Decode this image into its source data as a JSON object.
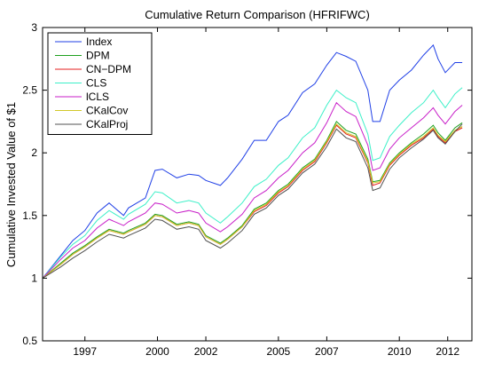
{
  "chart_data": {
    "type": "line",
    "title": "Cumulative Return Comparison (HFRIFWC)",
    "xlabel": "",
    "ylabel": "Cumulative Invested Value of $1",
    "xlim": [
      1995.25,
      2013.0
    ],
    "ylim": [
      0.5,
      3.0
    ],
    "xticks": [
      1997,
      2000,
      2002,
      2005,
      2007,
      2010,
      2012
    ],
    "yticks": [
      0.5,
      1,
      1.5,
      2,
      2.5,
      3
    ],
    "ytick_labels": [
      "0.5",
      "1",
      "1.5",
      "2",
      "2.5",
      "3"
    ],
    "grid": false,
    "legend_position": "top-left",
    "x": [
      1995.25,
      1996.0,
      1996.5,
      1997.0,
      1997.5,
      1998.0,
      1998.6,
      1998.8,
      1999.5,
      1999.9,
      2000.2,
      2000.8,
      2001.3,
      2001.7,
      2002.0,
      2002.6,
      2002.9,
      2003.5,
      2004.0,
      2004.5,
      2005.0,
      2005.4,
      2006.0,
      2006.5,
      2007.0,
      2007.4,
      2007.8,
      2008.2,
      2008.7,
      2008.9,
      2009.2,
      2009.6,
      2010.0,
      2010.5,
      2011.0,
      2011.4,
      2011.6,
      2011.9,
      2012.3,
      2012.6
    ],
    "series": [
      {
        "name": "Index",
        "color": "#1f3fe6",
        "values": [
          1.0,
          1.18,
          1.3,
          1.38,
          1.52,
          1.6,
          1.5,
          1.56,
          1.64,
          1.86,
          1.87,
          1.8,
          1.83,
          1.82,
          1.78,
          1.74,
          1.8,
          1.95,
          2.1,
          2.1,
          2.25,
          2.3,
          2.48,
          2.55,
          2.7,
          2.8,
          2.77,
          2.73,
          2.5,
          2.25,
          2.25,
          2.5,
          2.58,
          2.66,
          2.78,
          2.86,
          2.75,
          2.64,
          2.72,
          2.72
        ]
      },
      {
        "name": "DPM",
        "color": "#1ea01e",
        "values": [
          1.0,
          1.12,
          1.2,
          1.26,
          1.33,
          1.39,
          1.36,
          1.38,
          1.44,
          1.51,
          1.5,
          1.43,
          1.45,
          1.43,
          1.34,
          1.28,
          1.32,
          1.42,
          1.55,
          1.6,
          1.7,
          1.75,
          1.88,
          1.95,
          2.1,
          2.25,
          2.18,
          2.15,
          1.95,
          1.77,
          1.78,
          1.92,
          2.0,
          2.08,
          2.15,
          2.22,
          2.16,
          2.1,
          2.2,
          2.24
        ]
      },
      {
        "name": "CN−DPM",
        "color": "#e61e1e",
        "values": [
          1.0,
          1.11,
          1.19,
          1.25,
          1.32,
          1.38,
          1.35,
          1.37,
          1.43,
          1.5,
          1.49,
          1.42,
          1.44,
          1.42,
          1.33,
          1.27,
          1.31,
          1.41,
          1.53,
          1.58,
          1.68,
          1.73,
          1.86,
          1.93,
          2.08,
          2.22,
          2.15,
          2.12,
          1.92,
          1.74,
          1.76,
          1.9,
          1.98,
          2.06,
          2.12,
          2.19,
          2.13,
          2.08,
          2.17,
          2.2
        ]
      },
      {
        "name": "CLS",
        "color": "#3cf0c8",
        "values": [
          1.0,
          1.17,
          1.27,
          1.34,
          1.46,
          1.54,
          1.47,
          1.51,
          1.59,
          1.69,
          1.68,
          1.6,
          1.62,
          1.6,
          1.52,
          1.44,
          1.49,
          1.6,
          1.73,
          1.79,
          1.9,
          1.96,
          2.12,
          2.2,
          2.38,
          2.5,
          2.44,
          2.4,
          2.15,
          1.94,
          1.96,
          2.13,
          2.22,
          2.32,
          2.4,
          2.5,
          2.44,
          2.36,
          2.47,
          2.52
        ]
      },
      {
        "name": "lCLS",
        "color": "#c81ec8",
        "values": [
          1.0,
          1.15,
          1.24,
          1.3,
          1.4,
          1.47,
          1.42,
          1.45,
          1.52,
          1.6,
          1.59,
          1.52,
          1.54,
          1.52,
          1.44,
          1.37,
          1.41,
          1.51,
          1.64,
          1.7,
          1.8,
          1.86,
          2.0,
          2.08,
          2.24,
          2.4,
          2.33,
          2.29,
          2.06,
          1.86,
          1.88,
          2.03,
          2.12,
          2.2,
          2.28,
          2.36,
          2.3,
          2.23,
          2.33,
          2.38
        ]
      },
      {
        "name": "CKalCov",
        "color": "#d2c828",
        "values": [
          1.0,
          1.11,
          1.19,
          1.25,
          1.32,
          1.38,
          1.35,
          1.37,
          1.43,
          1.5,
          1.49,
          1.42,
          1.44,
          1.42,
          1.33,
          1.27,
          1.31,
          1.41,
          1.54,
          1.59,
          1.69,
          1.74,
          1.87,
          1.94,
          2.09,
          2.23,
          2.16,
          2.13,
          1.93,
          1.76,
          1.77,
          1.91,
          1.99,
          2.07,
          2.13,
          2.2,
          2.14,
          2.09,
          2.18,
          2.21
        ]
      },
      {
        "name": "CKalProj",
        "color": "#505050",
        "values": [
          1.0,
          1.09,
          1.16,
          1.22,
          1.29,
          1.35,
          1.32,
          1.34,
          1.4,
          1.47,
          1.46,
          1.39,
          1.41,
          1.39,
          1.3,
          1.24,
          1.28,
          1.38,
          1.51,
          1.56,
          1.66,
          1.71,
          1.84,
          1.91,
          2.05,
          2.19,
          2.12,
          2.09,
          1.88,
          1.7,
          1.72,
          1.87,
          1.96,
          2.04,
          2.11,
          2.18,
          2.12,
          2.07,
          2.17,
          2.23
        ]
      }
    ]
  }
}
